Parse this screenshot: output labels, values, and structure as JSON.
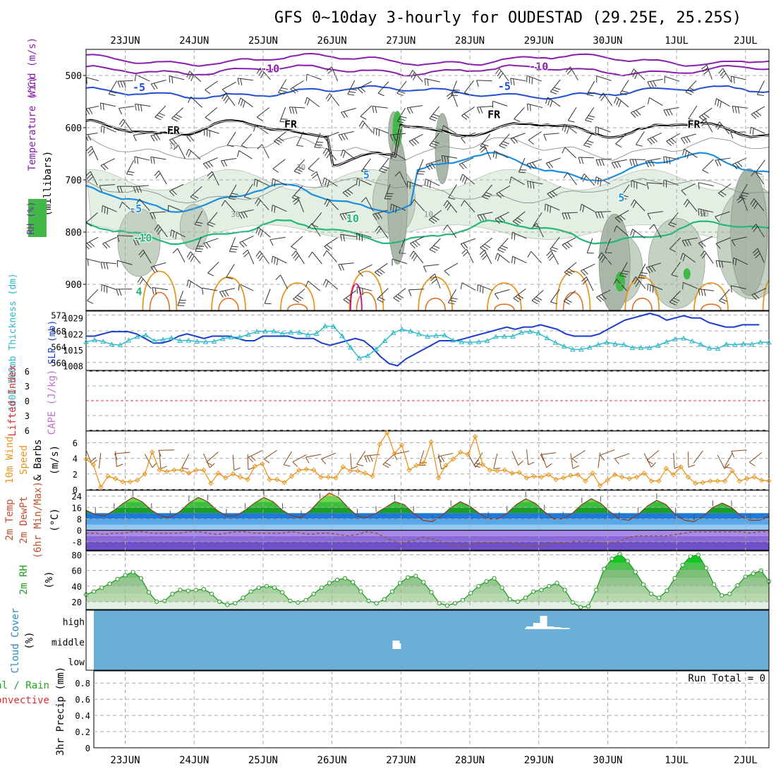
{
  "title": "GFS 0~10day 3-hourly for OUDESTAD (29.25E, 25.25S)",
  "dates": [
    "23JUN",
    "24JUN",
    "25JUN",
    "26JUN",
    "27JUN",
    "28JUN",
    "29JUN",
    "30JUN",
    "1JUL",
    "2JUL"
  ],
  "colors": {
    "grid": "#a8a8a8",
    "purple": "#8a1cb0",
    "blue": "#1f4fd8",
    "lightblue": "#1a8fe0",
    "green": "#22b878",
    "orange": "#e8961e",
    "magenta": "#c81f8c",
    "slp": "#1a3ccf",
    "thickness": "#28b8c8",
    "wind10": "#e8961e",
    "rhline": "#1f9d1f",
    "cloud": "#6aaed6",
    "li": "#e03030"
  },
  "chart_data": [
    {
      "type": "heatmap",
      "name": "upper_air",
      "ylabels": [
        "Temperature (°C)",
        "Wind (m/s)",
        "(millibars)",
        "RH (%)"
      ],
      "yticks": [
        500,
        600,
        700,
        800,
        900
      ],
      "ylim": [
        450,
        950
      ],
      "isotherm_labels": [
        {
          "text": "-10",
          "day": 2.1,
          "p": 494
        },
        {
          "text": "-10",
          "day": 6.0,
          "p": 490
        },
        {
          "text": "-5",
          "day": 0.2,
          "p": 530
        },
        {
          "text": "-5",
          "day": 5.5,
          "p": 528
        },
        {
          "text": "FR",
          "day": 0.7,
          "p": 612
        },
        {
          "text": "FR",
          "day": 2.4,
          "p": 601
        },
        {
          "text": "FR",
          "day": 5.35,
          "p": 582
        },
        {
          "text": "FR",
          "day": 8.25,
          "p": 601
        },
        {
          "text": "5",
          "day": 3.5,
          "p": 697
        },
        {
          "text": "5",
          "day": 7.2,
          "p": 741
        },
        {
          "text": "-5",
          "day": 0.15,
          "p": 762
        },
        {
          "text": "10",
          "day": 3.3,
          "p": 781
        },
        {
          "text": "-10",
          "day": 0.25,
          "p": 818
        },
        {
          "text": "4",
          "day": 0.2,
          "p": 921
        }
      ],
      "rh_labels": [
        {
          "text": "10",
          "day": 0.7,
          "p": 640
        },
        {
          "text": "30",
          "day": 2.55,
          "p": 681
        },
        {
          "text": "30",
          "day": 1.6,
          "p": 771
        },
        {
          "text": "10",
          "day": 4.4,
          "p": 771
        },
        {
          "text": "50",
          "day": 8.4,
          "p": 770
        }
      ]
    },
    {
      "type": "line",
      "name": "slp_thickness",
      "ylabel_left": "1000-500mb Thickness (dm)",
      "ylabel_right": "SLP (mb)",
      "thickness_ticks": [
        572,
        568,
        564,
        560
      ],
      "slp_ticks": [
        1029,
        1022,
        1015,
        1008
      ],
      "series": [
        {
          "name": "SLP",
          "values": [
            1021,
            1021,
            1022,
            1023,
            1023,
            1023,
            1022,
            1020,
            1018,
            1018,
            1019,
            1021,
            1022,
            1021,
            1020,
            1021,
            1021,
            1021,
            1020,
            1019,
            1019,
            1021,
            1021,
            1021,
            1021,
            1020,
            1020,
            1020,
            1018,
            1017,
            1018,
            1019,
            1020,
            1019,
            1016,
            1012,
            1009,
            1008,
            1011,
            1013,
            1015,
            1017,
            1019,
            1019,
            1019,
            1020,
            1021,
            1022,
            1023,
            1024,
            1025,
            1024,
            1025,
            1025,
            1026,
            1025,
            1024,
            1022,
            1021,
            1021,
            1021,
            1022,
            1024,
            1026,
            1028,
            1029,
            1030,
            1031,
            1030,
            1028,
            1029,
            1030,
            1029,
            1029,
            1027,
            1026,
            1025,
            1025,
            1026,
            1026,
            1026
          ]
        },
        {
          "name": "Thickness",
          "values": [
            565.2,
            565.7,
            565.3,
            564.6,
            564.4,
            565.6,
            566.5,
            566.9,
            565.5,
            565.8,
            566.2,
            565.5,
            565.6,
            565.3,
            565.2,
            565.3,
            566.0,
            566.4,
            566.4,
            567.1,
            567.8,
            567.9,
            567.9,
            567.3,
            567.6,
            567.6,
            567.0,
            567.3,
            569.2,
            569.1,
            566.7,
            563.8,
            561.1,
            561.7,
            563.4,
            565.5,
            567.5,
            568.4,
            567.9,
            567.2,
            566.6,
            566.8,
            566.9,
            565.6,
            565.2,
            565.1,
            565.2,
            565.5,
            566.5,
            566.6,
            566.6,
            567.6,
            567.8,
            567.4,
            566.2,
            565.0,
            564.1,
            563.3,
            563.3,
            563.8,
            564.5,
            565.1,
            564.7,
            564.5,
            563.7,
            563.7,
            563.7,
            564.3,
            565.2,
            565.9,
            566.1,
            565.4,
            564.6,
            563.6,
            563.5,
            564.6,
            564.5,
            564.7,
            564.6,
            565.1,
            565.1
          ]
        }
      ]
    },
    {
      "type": "line",
      "name": "li_cape",
      "ylabel_left": "Lifted Index",
      "ylabel_right": "CAPE (J/kg)",
      "yticks": [
        -6,
        -3,
        0,
        3,
        6
      ],
      "ylim": [
        -6,
        6
      ],
      "series": [
        {
          "name": "LI",
          "values": [
            0
          ]
        }
      ]
    },
    {
      "type": "line",
      "name": "wind10",
      "ylabel": "10m Wind Speed & Barbs (m/s)",
      "yticks": [
        0,
        2,
        4,
        6
      ],
      "ylim": [
        0,
        7.5
      ],
      "series": [
        {
          "name": "10m Wind Speed",
          "values": [
            3.9,
            3.2,
            0.3,
            1.7,
            1.4,
            1.0,
            1.0,
            1.2,
            2.0,
            4.8,
            2.5,
            2.3,
            2.5,
            2.5,
            2.1,
            2.5,
            2.5,
            0.8,
            2.1,
            1.5,
            2.0,
            1.6,
            1.3,
            3.0,
            3.3,
            1.3,
            1.3,
            0.9,
            1.7,
            2.5,
            2.6,
            2.5,
            1.6,
            1.6,
            1.5,
            2.9,
            2.4,
            2.4,
            2.1,
            1.7,
            5.8,
            7.3,
            4.6,
            5.7,
            2.5,
            3.1,
            3.4,
            6.1,
            1.5,
            3.1,
            3.9,
            4.8,
            4.5,
            6.8,
            3.2,
            2.5,
            2.4,
            2.5,
            2.1,
            2.2,
            1.5,
            1.7,
            1.6,
            1.9,
            1.3,
            1.5,
            1.8,
            1.9,
            1.1,
            2.1,
            0.5,
            1.2,
            1.9,
            1.6,
            1.4,
            1.6,
            2.1,
            1.1,
            1.1,
            2.7,
            1.9,
            2.9,
            1.6,
            0.8,
            0.9,
            1.1,
            1.1,
            1.1,
            2.4,
            1.1,
            1.4,
            1.6,
            1.2,
            1.1
          ]
        }
      ]
    },
    {
      "type": "area",
      "name": "temp2m",
      "ylabel": "2m Temp 2m DewPt (6hr Min/Max) (°C)",
      "yticks": [
        24,
        16,
        8,
        0,
        -8
      ],
      "ylim": [
        -14,
        28
      ],
      "series": [
        {
          "name": "2m Temp",
          "values": [
            14,
            11,
            10,
            14,
            19,
            23,
            20,
            14,
            10,
            9,
            13,
            19,
            23,
            20,
            14,
            10,
            10,
            14,
            19,
            23,
            20,
            14,
            10,
            9,
            14,
            21,
            26,
            23,
            16,
            10,
            9,
            12,
            16,
            20,
            18,
            12,
            7,
            6,
            10,
            16,
            20,
            17,
            12,
            8,
            8,
            12,
            18,
            22,
            19,
            13,
            8,
            8,
            12,
            18,
            22,
            19,
            13,
            8,
            7,
            11,
            17,
            21,
            18,
            11,
            7,
            6,
            10,
            16,
            19,
            16,
            10,
            7,
            7,
            10
          ]
        },
        {
          "name": "2m DewPt",
          "values": [
            -2,
            -2,
            -3,
            -2,
            -2,
            -1,
            -1,
            -2,
            -2,
            -2,
            -2,
            -1,
            -1,
            -2,
            -3,
            -2,
            -1,
            -1,
            -2,
            -2,
            -2,
            -2,
            -1,
            -2,
            -3,
            -2,
            -2,
            -3,
            -4,
            -3,
            -1,
            -2,
            -5,
            -8,
            -9,
            -7,
            -5,
            -6,
            -8,
            -10,
            -11,
            -10,
            -9,
            -9,
            -9,
            -8,
            -10,
            -11,
            -11,
            -10,
            -9,
            -9,
            -8,
            -8,
            -7,
            -9,
            -9,
            -8,
            -5,
            -4,
            -4,
            -4,
            -4,
            -3,
            -2,
            -1,
            -1,
            -1,
            -1,
            -1,
            -1,
            -2,
            -1,
            -1
          ]
        }
      ]
    },
    {
      "type": "area",
      "name": "rh2m",
      "ylabel": "2m RH (%)",
      "yticks": [
        80,
        60,
        40,
        20
      ],
      "ylim": [
        10,
        85
      ],
      "series": [
        {
          "name": "2m RH",
          "values": [
            29,
            33,
            38,
            43,
            49,
            54,
            58,
            50,
            32,
            20,
            21,
            30,
            35,
            34,
            35,
            36,
            30,
            20,
            16,
            18,
            25,
            33,
            38,
            40,
            38,
            32,
            21,
            19,
            22,
            30,
            38,
            44,
            48,
            50,
            45,
            33,
            21,
            18,
            23,
            33,
            44,
            51,
            53,
            45,
            32,
            18,
            15,
            18,
            22,
            31,
            40,
            46,
            50,
            38,
            23,
            20,
            25,
            33,
            35,
            40,
            44,
            35,
            19,
            13,
            14,
            35,
            62,
            75,
            81,
            72,
            58,
            42,
            30,
            25,
            34,
            50,
            67,
            78,
            80,
            63,
            42,
            28,
            30,
            41,
            52,
            56,
            60,
            46
          ]
        }
      ]
    },
    {
      "type": "bar",
      "name": "cloud",
      "ylabel": "Cloud Cover (%)",
      "categories": [
        "high",
        "middle",
        "low"
      ],
      "bars": [
        {
          "level": "middle",
          "day": 3.93,
          "value": 0.6
        },
        {
          "level": "middle",
          "day": 3.95,
          "value": 0.4
        },
        {
          "level": "high",
          "day": 5.87,
          "value": 0.15
        },
        {
          "level": "high",
          "day": 5.97,
          "value": 0.4
        },
        {
          "level": "high",
          "day": 6.07,
          "value": 0.9
        },
        {
          "level": "high",
          "day": 6.17,
          "value": 0.15
        },
        {
          "level": "high",
          "day": 6.27,
          "value": 0.1
        },
        {
          "level": "high",
          "day": 6.37,
          "value": 0.05
        }
      ]
    },
    {
      "type": "bar",
      "name": "precip",
      "ylabel": "3hr Precip (mm)",
      "ylabel_legend": [
        "Total / Rain",
        "Convective"
      ],
      "yticks": [
        0,
        0.2,
        0.4,
        0.6,
        0.8
      ],
      "ylim": [
        0,
        0.95
      ],
      "run_total": "Run Total = 0",
      "values": []
    }
  ]
}
